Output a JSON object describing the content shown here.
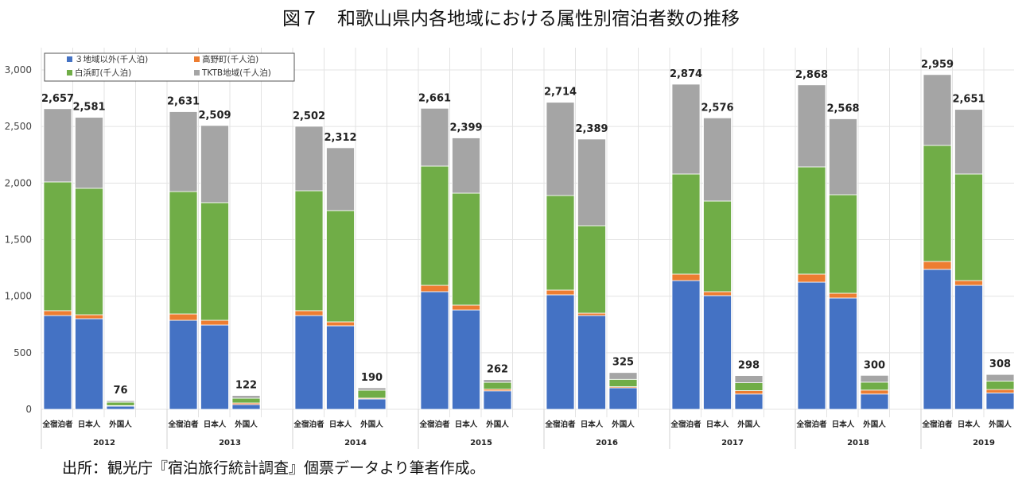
{
  "title": "図７　和歌山県内各地域における属性別宿泊者数の推移",
  "source": "出所：観光庁『宿泊旅行統計調査』個票データより筆者作成。",
  "chart_data": {
    "type": "bar",
    "stacked": true,
    "title": "図７　和歌山県内各地域における属性別宿泊者数の推移",
    "ylim": [
      0,
      3000
    ],
    "yticks": [
      "0",
      "500",
      "1,000",
      "1,500",
      "2,000",
      "2,500",
      "3,000"
    ],
    "ytick_values": [
      0,
      500,
      1000,
      1500,
      2000,
      2500,
      3000
    ],
    "grid": true,
    "legend": "top-left",
    "years": [
      "2012",
      "2013",
      "2014",
      "2015",
      "2016",
      "2017",
      "2018",
      "2019"
    ],
    "categories": [
      "全宿泊者",
      "日本人",
      "外国人"
    ],
    "series": [
      {
        "name": "３地域以外(千人泊)",
        "color": "#4472C4",
        "values": [
          [
            829,
            801,
            28
          ],
          [
            787,
            745,
            42
          ],
          [
            829,
            738,
            91
          ],
          [
            1040,
            878,
            163
          ],
          [
            1012,
            829,
            190
          ],
          [
            1138,
            1005,
            135
          ],
          [
            1124,
            984,
            135
          ],
          [
            1237,
            1096,
            145
          ]
        ]
      },
      {
        "name": "高野町(千人泊)",
        "color": "#ED7D31",
        "values": [
          [
            43,
            35,
            5
          ],
          [
            56,
            42,
            14
          ],
          [
            43,
            35,
            8
          ],
          [
            56,
            43,
            15
          ],
          [
            42,
            21,
            10
          ],
          [
            57,
            35,
            30
          ],
          [
            71,
            42,
            35
          ],
          [
            70,
            42,
            30
          ]
        ]
      },
      {
        "name": "白浜町(千人泊)",
        "color": "#70AD47",
        "values": [
          [
            1138,
            1118,
            30
          ],
          [
            1082,
            1040,
            42
          ],
          [
            1060,
            984,
            70
          ],
          [
            1054,
            990,
            60
          ],
          [
            836,
            773,
            65
          ],
          [
            885,
            801,
            70
          ],
          [
            948,
            871,
            70
          ],
          [
            1026,
            942,
            75
          ]
        ]
      },
      {
        "name": "TKTB地域(千人泊)",
        "color": "#A5A5A5",
        "values": [
          [
            647,
            627,
            13
          ],
          [
            706,
            682,
            24
          ],
          [
            570,
            555,
            21
          ],
          [
            511,
            488,
            24
          ],
          [
            824,
            766,
            60
          ],
          [
            794,
            735,
            63
          ],
          [
            725,
            671,
            60
          ],
          [
            626,
            571,
            58
          ]
        ]
      }
    ],
    "totals": [
      [
        "2,657",
        "2,581",
        "76"
      ],
      [
        "2,631",
        "2,509",
        "122"
      ],
      [
        "2,502",
        "2,312",
        "190"
      ],
      [
        "2,661",
        "2,399",
        "262"
      ],
      [
        "2,714",
        "2,389",
        "325"
      ],
      [
        "2,874",
        "2,576",
        "298"
      ],
      [
        "2,868",
        "2,568",
        "300"
      ],
      [
        "2,959",
        "2,651",
        "308"
      ]
    ]
  }
}
